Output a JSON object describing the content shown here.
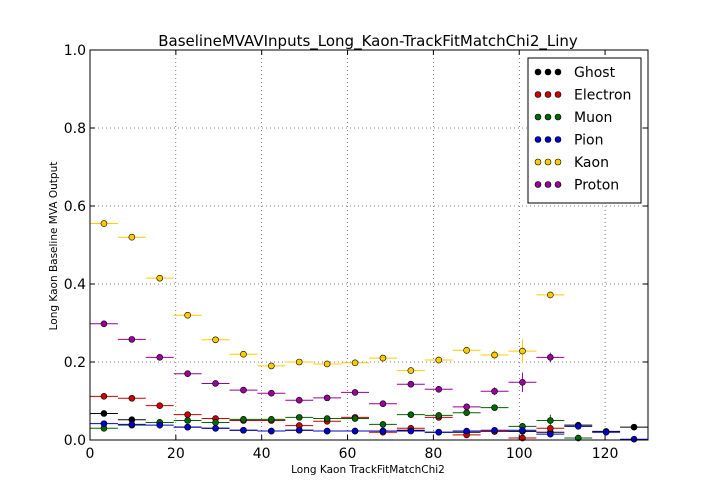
{
  "chart_data": {
    "type": "scatter",
    "title": "BaselineMVAVInputs_Long_Kaon-TrackFitMatchChi2_Liny",
    "xlabel": "Long Kaon TrackFitMatchChi2",
    "ylabel": "Long Kaon Baseline MVA Output",
    "xlim": [
      0,
      130
    ],
    "ylim": [
      0.0,
      1.0
    ],
    "xticks": [
      0,
      20,
      40,
      60,
      80,
      100,
      120
    ],
    "xtick_labels": [
      "0",
      "20",
      "40",
      "60",
      "80",
      "100",
      "120"
    ],
    "yticks": [
      0.0,
      0.2,
      0.4,
      0.6,
      0.8,
      1.0
    ],
    "ytick_labels": [
      "0.0",
      "0.2",
      "0.4",
      "0.6",
      "0.8",
      "1.0"
    ],
    "grid": true,
    "legend_position": "top-right",
    "x": [
      3.25,
      9.75,
      16.25,
      22.75,
      29.25,
      35.75,
      42.25,
      48.75,
      55.25,
      61.75,
      68.25,
      74.75,
      81.25,
      87.75,
      94.25,
      100.75,
      107.25,
      113.75,
      120.25,
      126.75
    ],
    "x_halfwidth": 3.25,
    "series": [
      {
        "name": "Ghost",
        "color": "#000000",
        "values": [
          0.068,
          0.052,
          0.045,
          0.033,
          0.03,
          0.025,
          0.023,
          0.025,
          0.023,
          0.023,
          0.023,
          0.025,
          0.02,
          0.02,
          0.022,
          0.022,
          0.02,
          0.038,
          0.022,
          0.033
        ],
        "errors": [
          0.004,
          0.003,
          0.003,
          0.002,
          0.002,
          0.002,
          0.002,
          0.002,
          0.002,
          0.002,
          0.002,
          0.002,
          0.002,
          0.002,
          0.003,
          0.003,
          0.003,
          0.005,
          0.005,
          0.008
        ]
      },
      {
        "name": "Electron",
        "color": "#cc0000",
        "values": [
          0.112,
          0.107,
          0.088,
          0.065,
          0.055,
          0.05,
          0.05,
          0.037,
          0.048,
          0.058,
          0.02,
          0.03,
          0.058,
          0.013,
          0.022,
          0.005,
          0.03,
          null,
          null,
          null
        ],
        "errors": [
          0.005,
          0.004,
          0.004,
          0.004,
          0.004,
          0.004,
          0.004,
          0.004,
          0.004,
          0.005,
          0.003,
          0.004,
          0.006,
          0.003,
          0.004,
          0.003,
          0.005,
          null,
          null,
          null
        ]
      },
      {
        "name": "Muon",
        "color": "#006600",
        "values": [
          0.03,
          0.038,
          0.045,
          0.05,
          0.045,
          0.053,
          0.053,
          0.058,
          0.055,
          0.055,
          0.04,
          0.065,
          0.063,
          0.07,
          0.083,
          0.035,
          0.05,
          0.005,
          null,
          null
        ],
        "errors": [
          0.003,
          0.003,
          0.003,
          0.003,
          0.003,
          0.003,
          0.003,
          0.004,
          0.004,
          0.004,
          0.004,
          0.005,
          0.005,
          0.006,
          0.007,
          0.008,
          0.015,
          0.005,
          null,
          null
        ]
      },
      {
        "name": "Pion",
        "color": "#0000cc",
        "values": [
          0.042,
          0.04,
          0.038,
          0.033,
          0.03,
          0.025,
          0.023,
          0.025,
          0.023,
          0.023,
          0.023,
          0.023,
          0.02,
          0.023,
          0.025,
          0.025,
          0.015,
          0.035,
          0.02,
          0.002
        ],
        "errors": [
          0.002,
          0.002,
          0.002,
          0.002,
          0.002,
          0.002,
          0.002,
          0.002,
          0.002,
          0.002,
          0.002,
          0.002,
          0.002,
          0.002,
          0.003,
          0.003,
          0.003,
          0.004,
          0.004,
          0.002
        ]
      },
      {
        "name": "Kaon",
        "color": "#ffcc00",
        "values": [
          0.555,
          0.52,
          0.415,
          0.32,
          0.257,
          0.22,
          0.19,
          0.2,
          0.195,
          0.198,
          0.21,
          0.178,
          0.205,
          0.23,
          0.218,
          0.228,
          0.372,
          null,
          null,
          null
        ],
        "errors": [
          0.004,
          0.004,
          0.004,
          0.004,
          0.004,
          0.004,
          0.005,
          0.005,
          0.006,
          0.006,
          0.007,
          0.008,
          0.009,
          0.01,
          0.012,
          0.03,
          0.005,
          null,
          null,
          null
        ]
      },
      {
        "name": "Proton",
        "color": "#990099",
        "values": [
          0.298,
          0.258,
          0.212,
          0.17,
          0.145,
          0.128,
          0.12,
          0.102,
          0.108,
          0.122,
          0.093,
          0.143,
          0.13,
          0.085,
          0.125,
          0.148,
          0.212,
          null,
          null,
          null
        ],
        "errors": [
          0.004,
          0.004,
          0.004,
          0.004,
          0.004,
          0.004,
          0.004,
          0.004,
          0.005,
          0.005,
          0.005,
          0.007,
          0.007,
          0.008,
          0.01,
          0.025,
          0.012,
          null,
          null,
          null
        ]
      }
    ]
  }
}
